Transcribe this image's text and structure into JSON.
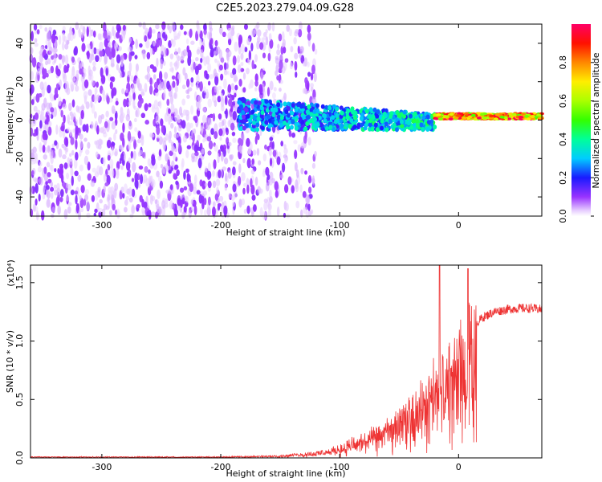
{
  "title": "C2E5.2023.279.04.09.G28",
  "chart_data": [
    {
      "type": "heatmap",
      "xlabel": "Height of straight line (km)",
      "ylabel": "Frequency (Hz)",
      "xlim": [
        -360,
        70
      ],
      "ylim": [
        -50,
        50
      ],
      "x_ticks": [
        -300,
        -200,
        -100,
        0
      ],
      "y_ticks": [
        -40,
        -20,
        0,
        20,
        40
      ],
      "colorbar": {
        "label": "Normalized spectral amplitude",
        "range": [
          0.0,
          1.0
        ],
        "ticks": [
          "0.0",
          "0.2",
          "0.4",
          "0.6",
          "0.8"
        ],
        "tick_values": [
          0.0,
          0.2,
          0.4,
          0.6,
          0.8
        ]
      },
      "regions": [
        {
          "x_range": [
            -360,
            -185
          ],
          "freq_range": [
            -50,
            50
          ],
          "amplitude": 0.05,
          "density": "high"
        },
        {
          "x_range": [
            -185,
            -120
          ],
          "freq_range": [
            -50,
            50
          ],
          "amplitude": 0.03,
          "density": "medium"
        },
        {
          "x_range": [
            -185,
            -20
          ],
          "freq_range": [
            -10,
            10
          ],
          "amplitude": 0.2,
          "density": "band"
        },
        {
          "x_range": [
            -20,
            70
          ],
          "freq_range": [
            0,
            4
          ],
          "amplitude": 0.85,
          "density": "band"
        }
      ]
    },
    {
      "type": "line",
      "xlabel": "Height of straight line (km)",
      "ylabel": "SNR (10 * v/v)",
      "y_multiplier": "(x10⁴)",
      "xlim": [
        -360,
        70
      ],
      "ylim": [
        0.0,
        1.65
      ],
      "x_ticks": [
        -300,
        -200,
        -100,
        0
      ],
      "y_ticks": [
        0.0,
        0.5,
        1.0,
        1.5
      ],
      "y_tick_labels": [
        "0.0",
        "0.5",
        "1.0",
        "1.5"
      ],
      "color": "#ee3333",
      "x": [
        -360,
        -300,
        -250,
        -200,
        -170,
        -150,
        -130,
        -110,
        -100,
        -90,
        -80,
        -70,
        -60,
        -50,
        -40,
        -30,
        -20,
        -15,
        -10,
        0,
        10,
        20,
        30,
        40,
        50,
        60,
        70
      ],
      "y": [
        0.01,
        0.01,
        0.01,
        0.01,
        0.015,
        0.02,
        0.04,
        0.06,
        0.1,
        0.14,
        0.18,
        0.22,
        0.28,
        0.36,
        0.45,
        0.55,
        0.7,
        1.65,
        0.8,
        0.95,
        1.1,
        1.2,
        1.25,
        1.27,
        1.28,
        1.28,
        1.27
      ],
      "spikes": [
        {
          "x": -16,
          "y": 1.65
        },
        {
          "x": 8,
          "y": 1.62
        }
      ]
    }
  ]
}
